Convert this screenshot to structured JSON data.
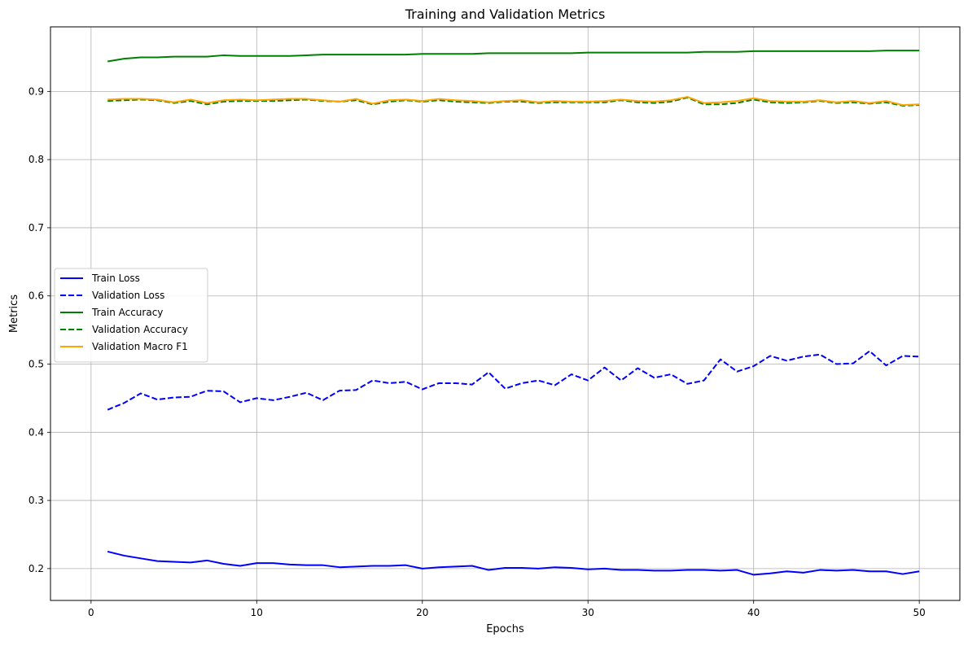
{
  "chart_data": {
    "type": "line",
    "title": "Training and Validation Metrics",
    "xlabel": "Epochs",
    "ylabel": "Metrics",
    "xlim": [
      -2.45,
      52.45
    ],
    "ylim": [
      0.1533,
      0.9947
    ],
    "xticks": [
      0,
      10,
      20,
      30,
      40,
      50
    ],
    "yticks": [
      0.2,
      0.3,
      0.4,
      0.5,
      0.6,
      0.7,
      0.8,
      0.9
    ],
    "grid": true,
    "legend_position": "center-left",
    "x": [
      1,
      2,
      3,
      4,
      5,
      6,
      7,
      8,
      9,
      10,
      11,
      12,
      13,
      14,
      15,
      16,
      17,
      18,
      19,
      20,
      21,
      22,
      23,
      24,
      25,
      26,
      27,
      28,
      29,
      30,
      31,
      32,
      33,
      34,
      35,
      36,
      37,
      38,
      39,
      40,
      41,
      42,
      43,
      44,
      45,
      46,
      47,
      48,
      49,
      50
    ],
    "series": [
      {
        "name": "Train Loss",
        "color": "#0000ff",
        "style": "solid",
        "values": [
          0.225,
          0.219,
          0.215,
          0.211,
          0.21,
          0.209,
          0.212,
          0.207,
          0.204,
          0.208,
          0.208,
          0.206,
          0.205,
          0.205,
          0.202,
          0.203,
          0.204,
          0.204,
          0.205,
          0.2,
          0.202,
          0.203,
          0.204,
          0.198,
          0.201,
          0.201,
          0.2,
          0.202,
          0.201,
          0.199,
          0.2,
          0.198,
          0.198,
          0.197,
          0.197,
          0.198,
          0.198,
          0.197,
          0.198,
          0.191,
          0.193,
          0.196,
          0.194,
          0.198,
          0.197,
          0.198,
          0.196,
          0.196,
          0.192,
          0.196
        ]
      },
      {
        "name": "Validation Loss",
        "color": "#0000ff",
        "style": "dashed",
        "values": [
          0.433,
          0.443,
          0.457,
          0.448,
          0.451,
          0.452,
          0.461,
          0.46,
          0.444,
          0.45,
          0.447,
          0.452,
          0.458,
          0.447,
          0.461,
          0.462,
          0.476,
          0.472,
          0.474,
          0.463,
          0.472,
          0.472,
          0.47,
          0.488,
          0.464,
          0.472,
          0.476,
          0.469,
          0.485,
          0.476,
          0.495,
          0.476,
          0.494,
          0.48,
          0.485,
          0.471,
          0.476,
          0.507,
          0.489,
          0.497,
          0.512,
          0.505,
          0.511,
          0.514,
          0.5,
          0.501,
          0.519,
          0.498,
          0.512,
          0.511
        ]
      },
      {
        "name": "Train Accuracy",
        "color": "#008000",
        "style": "solid",
        "values": [
          0.944,
          0.948,
          0.95,
          0.95,
          0.951,
          0.951,
          0.951,
          0.953,
          0.952,
          0.952,
          0.952,
          0.952,
          0.953,
          0.954,
          0.954,
          0.954,
          0.954,
          0.954,
          0.954,
          0.955,
          0.955,
          0.955,
          0.955,
          0.956,
          0.956,
          0.956,
          0.956,
          0.956,
          0.956,
          0.957,
          0.957,
          0.957,
          0.957,
          0.957,
          0.957,
          0.957,
          0.958,
          0.958,
          0.958,
          0.959,
          0.959,
          0.959,
          0.959,
          0.959,
          0.959,
          0.959,
          0.959,
          0.96,
          0.96,
          0.96
        ]
      },
      {
        "name": "Validation Accuracy",
        "color": "#008000",
        "style": "dashed",
        "values": [
          0.886,
          0.887,
          0.888,
          0.887,
          0.883,
          0.886,
          0.881,
          0.885,
          0.886,
          0.886,
          0.886,
          0.887,
          0.888,
          0.886,
          0.885,
          0.887,
          0.881,
          0.885,
          0.887,
          0.885,
          0.887,
          0.885,
          0.884,
          0.883,
          0.885,
          0.885,
          0.883,
          0.884,
          0.884,
          0.884,
          0.884,
          0.887,
          0.884,
          0.883,
          0.885,
          0.891,
          0.881,
          0.881,
          0.883,
          0.888,
          0.884,
          0.883,
          0.884,
          0.886,
          0.883,
          0.884,
          0.882,
          0.884,
          0.879,
          0.88
        ]
      },
      {
        "name": "Validation Macro F1",
        "color": "#ffa500",
        "style": "solid",
        "values": [
          0.888,
          0.889,
          0.889,
          0.888,
          0.884,
          0.888,
          0.883,
          0.887,
          0.888,
          0.887,
          0.888,
          0.889,
          0.889,
          0.887,
          0.885,
          0.889,
          0.882,
          0.887,
          0.888,
          0.886,
          0.889,
          0.887,
          0.886,
          0.884,
          0.886,
          0.887,
          0.884,
          0.886,
          0.885,
          0.885,
          0.886,
          0.888,
          0.886,
          0.885,
          0.887,
          0.892,
          0.883,
          0.884,
          0.886,
          0.89,
          0.886,
          0.885,
          0.885,
          0.887,
          0.884,
          0.886,
          0.883,
          0.886,
          0.88,
          0.881
        ]
      }
    ]
  }
}
